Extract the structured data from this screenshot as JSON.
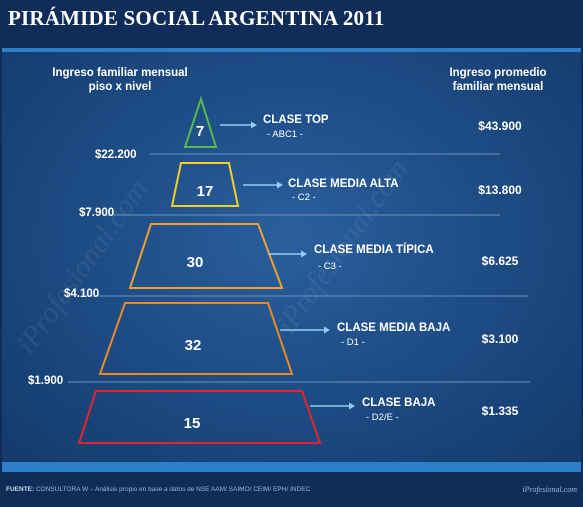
{
  "title": "PIRÁMIDE SOCIAL ARGENTINA 2011",
  "headers": {
    "left": "Ingreso familiar mensual\npiso x nivel",
    "right": "Ingreso promedio\nfamiliar mensual"
  },
  "thresholds": [
    "$22.200",
    "$7.900",
    "$4.100",
    "$1.900"
  ],
  "levels": [
    {
      "value": "7",
      "name": "CLASE TOP",
      "code": "- ABC1 -",
      "avg": "$43.900",
      "color": "#5cb84a"
    },
    {
      "value": "17",
      "name": "CLASE MEDIA ALTA",
      "code": "- C2 -",
      "avg": "$13.800",
      "color": "#f2d021"
    },
    {
      "value": "30",
      "name": "CLASE MEDIA TÍPICA",
      "code": "- C3 -",
      "avg": "$6.625",
      "color": "#f0a030"
    },
    {
      "value": "32",
      "name": "CLASE MEDIA BAJA",
      "code": "- D1 -",
      "avg": "$3.100",
      "color": "#e88a2a"
    },
    {
      "value": "15",
      "name": "CLASE BAJA",
      "code": "- D2/E -",
      "avg": "$1.335",
      "color": "#e4252a"
    }
  ],
  "watermark": "iProfesional.com",
  "footer": {
    "label": "FUENTE:",
    "text": "CONSULTORA W – Análisis propio en base a datos de NSE AAM/ SAIMO/ CEIM/ EPH/ INDEC",
    "brand": "iProfesional.com"
  }
}
